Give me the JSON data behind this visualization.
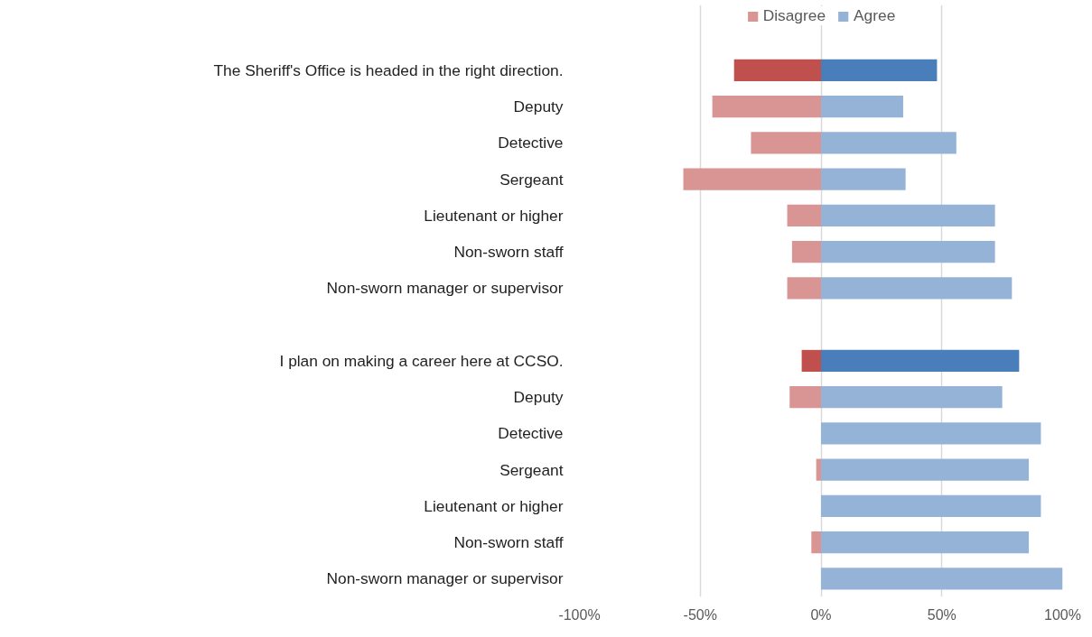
{
  "chart_data": {
    "type": "bar",
    "orientation": "horizontal",
    "categories": [
      "The Sheriff's Office is headed in the right direction.",
      "Deputy",
      "Detective",
      "Sergeant",
      "Lieutenant or higher",
      "Non-sworn staff",
      "Non-sworn manager or supervisor",
      null,
      "I plan on making a career here at CCSO.",
      "Deputy",
      "Detective",
      "Sergeant",
      "Lieutenant or higher",
      "Non-sworn staff",
      "Non-sworn manager or supervisor"
    ],
    "series": [
      {
        "name": "Disagree",
        "color": "#d99594",
        "colors": [
          "#c0504d",
          "#d99594",
          "#d99594",
          "#d99594",
          "#d99594",
          "#d99594",
          "#d99594",
          null,
          "#c0504d",
          "#d99594",
          "#d99594",
          "#d99594",
          "#d99594",
          "#d99594",
          "#d99594"
        ],
        "values": [
          -36,
          -45,
          -29,
          -57,
          -14,
          -12,
          -14,
          null,
          -8,
          -13,
          0,
          -2,
          0,
          -4,
          0
        ]
      },
      {
        "name": "Agree",
        "color": "#95b3d7",
        "colors": [
          "#4a7ebb",
          "#95b3d7",
          "#95b3d7",
          "#95b3d7",
          "#95b3d7",
          "#95b3d7",
          "#95b3d7",
          null,
          "#4a7ebb",
          "#95b3d7",
          "#95b3d7",
          "#95b3d7",
          "#95b3d7",
          "#95b3d7",
          "#95b3d7"
        ],
        "values": [
          48,
          34,
          56,
          35,
          72,
          72,
          79,
          null,
          82,
          75,
          91,
          86,
          91,
          86,
          100
        ]
      }
    ],
    "xlim": [
      -100,
      100
    ],
    "xticks": [
      {
        "value": -100,
        "label": "-100%"
      },
      {
        "value": -50,
        "label": "-50%"
      },
      {
        "value": 0,
        "label": "0%"
      },
      {
        "value": 50,
        "label": "50%"
      },
      {
        "value": 100,
        "label": "100%"
      }
    ],
    "grid": "x",
    "legend": "top",
    "stacked": true
  }
}
